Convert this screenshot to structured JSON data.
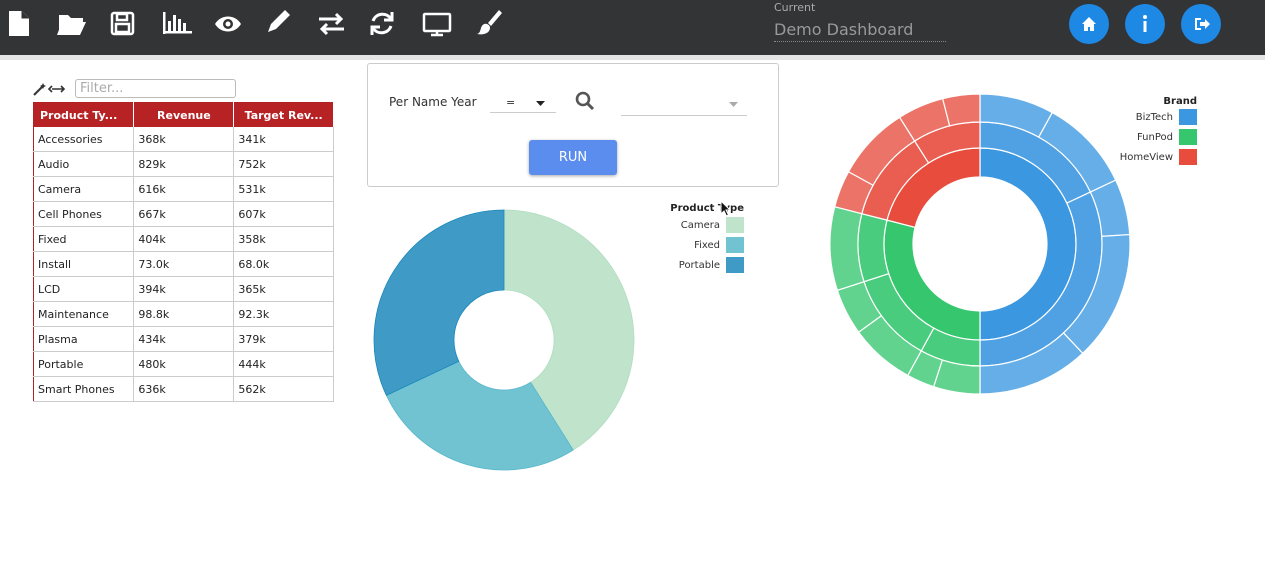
{
  "toolbar": {
    "current_label": "Current",
    "dashboard_name": "Demo Dashboard"
  },
  "table": {
    "filter_placeholder": "Filter...",
    "columns": [
      "Product Ty...",
      "Revenue",
      "Target Rev..."
    ],
    "rows": [
      [
        "Accessories",
        "368k",
        "341k"
      ],
      [
        "Audio",
        "829k",
        "752k"
      ],
      [
        "Camera",
        "616k",
        "531k"
      ],
      [
        "Cell Phones",
        "667k",
        "607k"
      ],
      [
        "Fixed",
        "404k",
        "358k"
      ],
      [
        "Install",
        "73.0k",
        "68.0k"
      ],
      [
        "LCD",
        "394k",
        "365k"
      ],
      [
        "Maintenance",
        "98.8k",
        "92.3k"
      ],
      [
        "Plasma",
        "434k",
        "379k"
      ],
      [
        "Portable",
        "480k",
        "444k"
      ],
      [
        "Smart Phones",
        "636k",
        "562k"
      ]
    ]
  },
  "filter_panel": {
    "field": "Per Name Year",
    "operator": "=",
    "button": "RUN"
  },
  "chart_data": [
    {
      "type": "pie",
      "legend_title": "Product Type",
      "categories": [
        "Camera",
        "Fixed",
        "Portable"
      ],
      "values": [
        616,
        404,
        480
      ],
      "colors": [
        "#bfe3cb",
        "#72c3d2",
        "#3f9bc6"
      ]
    },
    {
      "type": "sunburst",
      "legend_title": "Brand",
      "categories": [
        "BizTech",
        "FunPod",
        "HomeView"
      ],
      "values": [
        50,
        29,
        21
      ],
      "colors": [
        "#3b97e0",
        "#35c66e",
        "#e74c3c"
      ],
      "children": [
        {
          "level2": [
            18,
            32
          ],
          "level3": [
            8,
            10,
            6,
            14,
            12
          ]
        },
        {
          "level2": [
            8,
            12,
            9
          ],
          "level3": [
            5,
            3,
            7,
            5,
            9
          ]
        },
        {
          "level2": [
            12,
            9
          ],
          "level3": [
            4,
            8,
            5,
            4
          ]
        }
      ]
    }
  ]
}
